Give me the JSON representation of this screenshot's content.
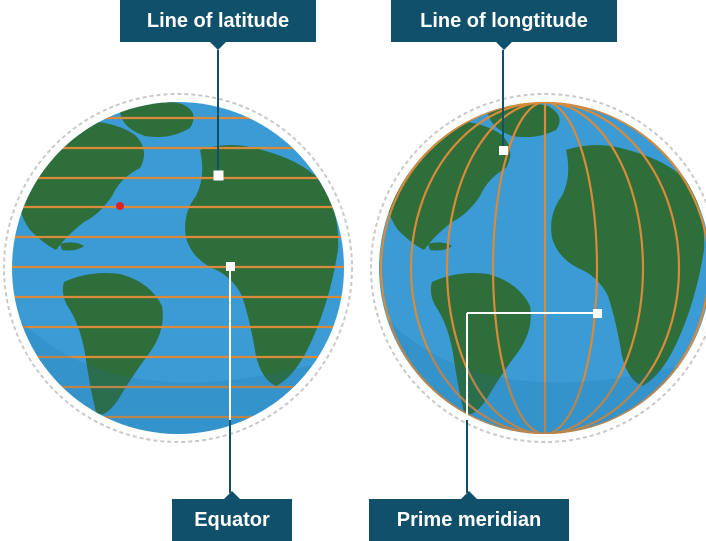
{
  "labels": {
    "latitude": "Line of latitude",
    "longitude": "Line of longtitude",
    "equator": "Equator",
    "prime_meridian": "Prime meridian"
  },
  "colors": {
    "ocean": "#3a9bd5",
    "ocean_shade": "#2e86c0",
    "land": "#2e6e3a",
    "grid_lines": "#d98a3a",
    "label_bg": "#11506a",
    "label_text": "#ffffff",
    "callout": "#11506a",
    "marker": "#ffffff",
    "red_dot": "#e0202a"
  },
  "icons": [
    "globe-latitude",
    "globe-longitude",
    "red-dot-marker"
  ]
}
